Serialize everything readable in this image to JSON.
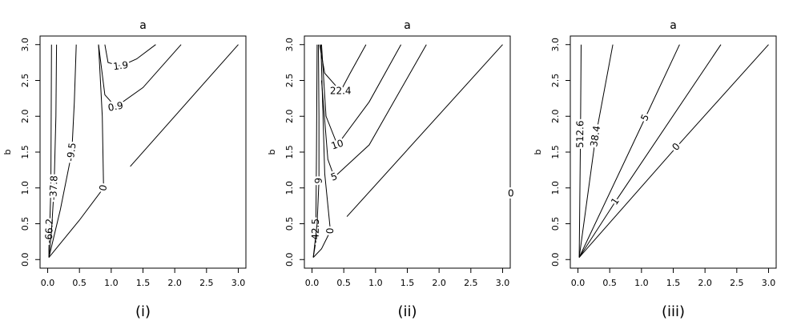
{
  "chart_data": [
    {
      "type": "contour",
      "xlabel": "a",
      "ylabel": "b",
      "caption": "(i)",
      "xlim": [
        -0.12,
        3.12
      ],
      "ylim": [
        -0.12,
        3.12
      ],
      "xticks": [
        {
          "value": 0,
          "label": "0.0"
        },
        0.5,
        {
          "value": 1,
          "label": "1.0"
        },
        1.5,
        {
          "value": 2,
          "label": "2.0"
        },
        2.5,
        {
          "value": 3,
          "label": "3.0"
        }
      ],
      "yticks": [
        {
          "value": 0,
          "label": "0.0"
        },
        0.5,
        {
          "value": 1,
          "label": "1.0"
        },
        1.5,
        {
          "value": 2,
          "label": "2.0"
        },
        2.5,
        {
          "value": 3,
          "label": "3.0"
        }
      ],
      "contours": [
        {
          "level": -66.2,
          "x": [
            0.06,
            0.05,
            0.03,
            0.02,
            0.02
          ],
          "y": [
            3.0,
            1.0,
            0.4,
            0.2,
            0.03
          ]
        },
        {
          "level": -37.8,
          "x": [
            0.14,
            0.13,
            0.1,
            0.06,
            0.02
          ],
          "y": [
            3.0,
            2.0,
            1.0,
            0.4,
            0.03
          ]
        },
        {
          "level": -9.5,
          "x": [
            0.45,
            0.42,
            0.38,
            0.2,
            0.02
          ],
          "y": [
            3.0,
            2.2,
            1.5,
            0.7,
            0.03
          ]
        },
        {
          "level": 0,
          "x": [
            0.02,
            0.5,
            0.88,
            0.86,
            0.8
          ],
          "y": [
            0.03,
            0.55,
            1.0,
            2.0,
            3.0
          ]
        },
        {
          "level": 0.9,
          "x": [
            0.8,
            0.9,
            1.07,
            1.5,
            2.1
          ],
          "y": [
            3.0,
            2.3,
            2.13,
            2.4,
            3.0
          ]
        },
        {
          "level": 1.9,
          "x": [
            0.9,
            0.95,
            1.15,
            1.4,
            1.7
          ],
          "y": [
            3.0,
            2.75,
            2.7,
            2.8,
            3.0
          ]
        },
        {
          "x": [
            1.3,
            3.0
          ],
          "y": [
            1.3,
            3.0
          ]
        }
      ]
    },
    {
      "type": "contour",
      "xlabel": "a",
      "ylabel": "b",
      "caption": "(ii)",
      "xlim": [
        -0.12,
        3.12
      ],
      "ylim": [
        -0.12,
        3.12
      ],
      "xticks": [
        {
          "value": 0,
          "label": "0.0"
        },
        0.5,
        {
          "value": 1,
          "label": "1.0"
        },
        1.5,
        {
          "value": 2,
          "label": "2.0"
        },
        2.5,
        {
          "value": 3,
          "label": "3.0"
        }
      ],
      "yticks": [
        {
          "value": 0,
          "label": "0.0"
        },
        0.5,
        {
          "value": 1,
          "label": "1.0"
        },
        1.5,
        {
          "value": 2,
          "label": "2.0"
        },
        2.5,
        {
          "value": 3,
          "label": "3.0"
        }
      ],
      "contours": [
        {
          "level": -42.5,
          "x": [
            0.02,
            0.05,
            0.06,
            0.07,
            0.08
          ],
          "y": [
            0.03,
            0.2,
            0.4,
            1.5,
            3.0
          ]
        },
        {
          "level": 0,
          "x": [
            0.02,
            0.15,
            0.29,
            0.2,
            0.14
          ],
          "y": [
            0.03,
            0.15,
            0.4,
            1.2,
            3.0
          ]
        },
        {
          "level": 9,
          "x": [
            0.1,
            0.11,
            0.11,
            0.08,
            0.02
          ],
          "y": [
            3.0,
            2.0,
            1.1,
            0.5,
            0.03
          ]
        },
        {
          "level": 5,
          "x": [
            0.15,
            0.25,
            0.35,
            0.9,
            1.8
          ],
          "y": [
            2.5,
            1.4,
            1.15,
            1.6,
            3.0
          ]
        },
        {
          "level": 10,
          "x": [
            0.15,
            0.22,
            0.4,
            0.9,
            1.4
          ],
          "y": [
            3.0,
            2.0,
            1.6,
            2.2,
            3.0
          ]
        },
        {
          "level": 22.4,
          "x": [
            0.12,
            0.2,
            0.45,
            0.6,
            0.85
          ],
          "y": [
            3.0,
            2.6,
            2.35,
            2.6,
            3.0
          ]
        },
        {
          "x": [
            0.55,
            3.0
          ],
          "y": [
            0.6,
            3.0
          ]
        },
        {
          "level": 0,
          "x": [
            3.13
          ],
          "y": [
            0.92
          ]
        }
      ]
    },
    {
      "type": "contour",
      "xlabel": "a",
      "ylabel": "b",
      "caption": "(iii)",
      "xlim": [
        -0.12,
        3.12
      ],
      "ylim": [
        -0.12,
        3.12
      ],
      "xticks": [
        {
          "value": 0,
          "label": "0.0"
        },
        0.5,
        {
          "value": 1,
          "label": "1.0"
        },
        1.5,
        {
          "value": 2,
          "label": "2.0"
        },
        2.5,
        {
          "value": 3,
          "label": "3.0"
        }
      ],
      "yticks": [
        {
          "value": 0,
          "label": "0.0"
        },
        0.5,
        {
          "value": 1,
          "label": "1.0"
        },
        1.5,
        {
          "value": 2,
          "label": "2.0"
        },
        2.5,
        {
          "value": 3,
          "label": "3.0"
        }
      ],
      "contours": [
        {
          "level": 512.6,
          "x": [
            0.02,
            0.04,
            0.05
          ],
          "y": [
            0.03,
            1.75,
            3.0
          ]
        },
        {
          "level": 38.4,
          "x": [
            0.02,
            0.28,
            0.55
          ],
          "y": [
            0.03,
            1.72,
            3.0
          ]
        },
        {
          "level": 5,
          "x": [
            0.02,
            1.06,
            1.6
          ],
          "y": [
            0.03,
            1.98,
            3.0
          ]
        },
        {
          "level": 1,
          "x": [
            0.02,
            0.59,
            2.25
          ],
          "y": [
            0.03,
            0.81,
            3.0
          ]
        },
        {
          "level": 0,
          "x": [
            0.02,
            1.55,
            3.0
          ],
          "y": [
            0.03,
            1.57,
            3.0
          ]
        }
      ]
    }
  ]
}
